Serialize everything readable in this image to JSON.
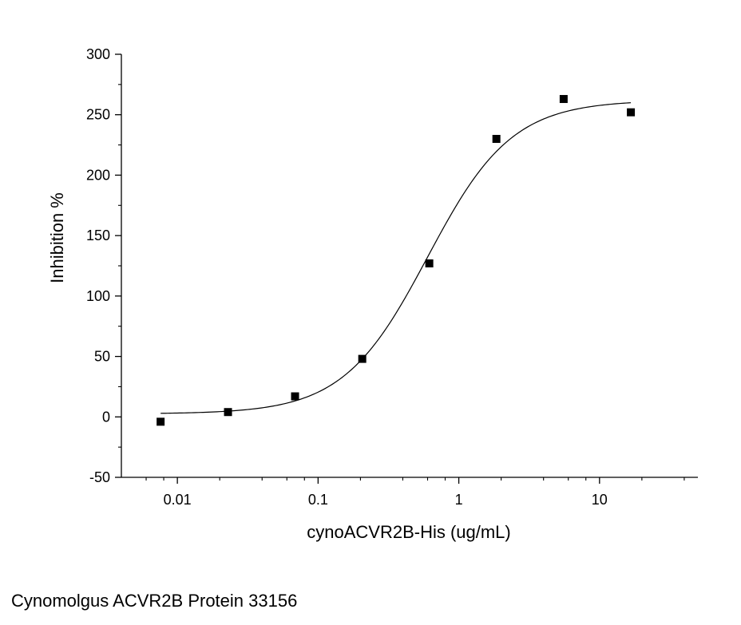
{
  "caption": "Cynomolgus ACVR2B Protein 33156",
  "chart_data": {
    "type": "scatter",
    "xlabel": "cynoACVR2B-His (ug/mL)",
    "ylabel": "Inhibition %",
    "xscale": "log",
    "xlim": [
      0.004,
      50
    ],
    "ylim": [
      -50,
      300
    ],
    "xticks": [
      0.01,
      0.1,
      1,
      10
    ],
    "xtick_labels": [
      "0.01",
      "0.1",
      "1",
      "10"
    ],
    "yticks": [
      -50,
      0,
      50,
      100,
      150,
      200,
      250,
      300
    ],
    "ytick_labels": [
      "-50",
      "0",
      "50",
      "100",
      "150",
      "200",
      "250",
      "300"
    ],
    "grid": false,
    "series": [
      {
        "marker": "square",
        "color": "#000000",
        "x": [
          0.0076,
          0.0229,
          0.0686,
          0.206,
          0.617,
          1.85,
          5.56,
          16.7
        ],
        "y": [
          -4,
          4,
          17,
          48,
          127,
          230,
          263,
          252
        ]
      }
    ],
    "fit": {
      "model": "4PL",
      "bottom": 2.5,
      "top": 262,
      "ec50": 0.6,
      "hill": 1.45,
      "x_range": [
        0.0076,
        16.7
      ]
    }
  }
}
